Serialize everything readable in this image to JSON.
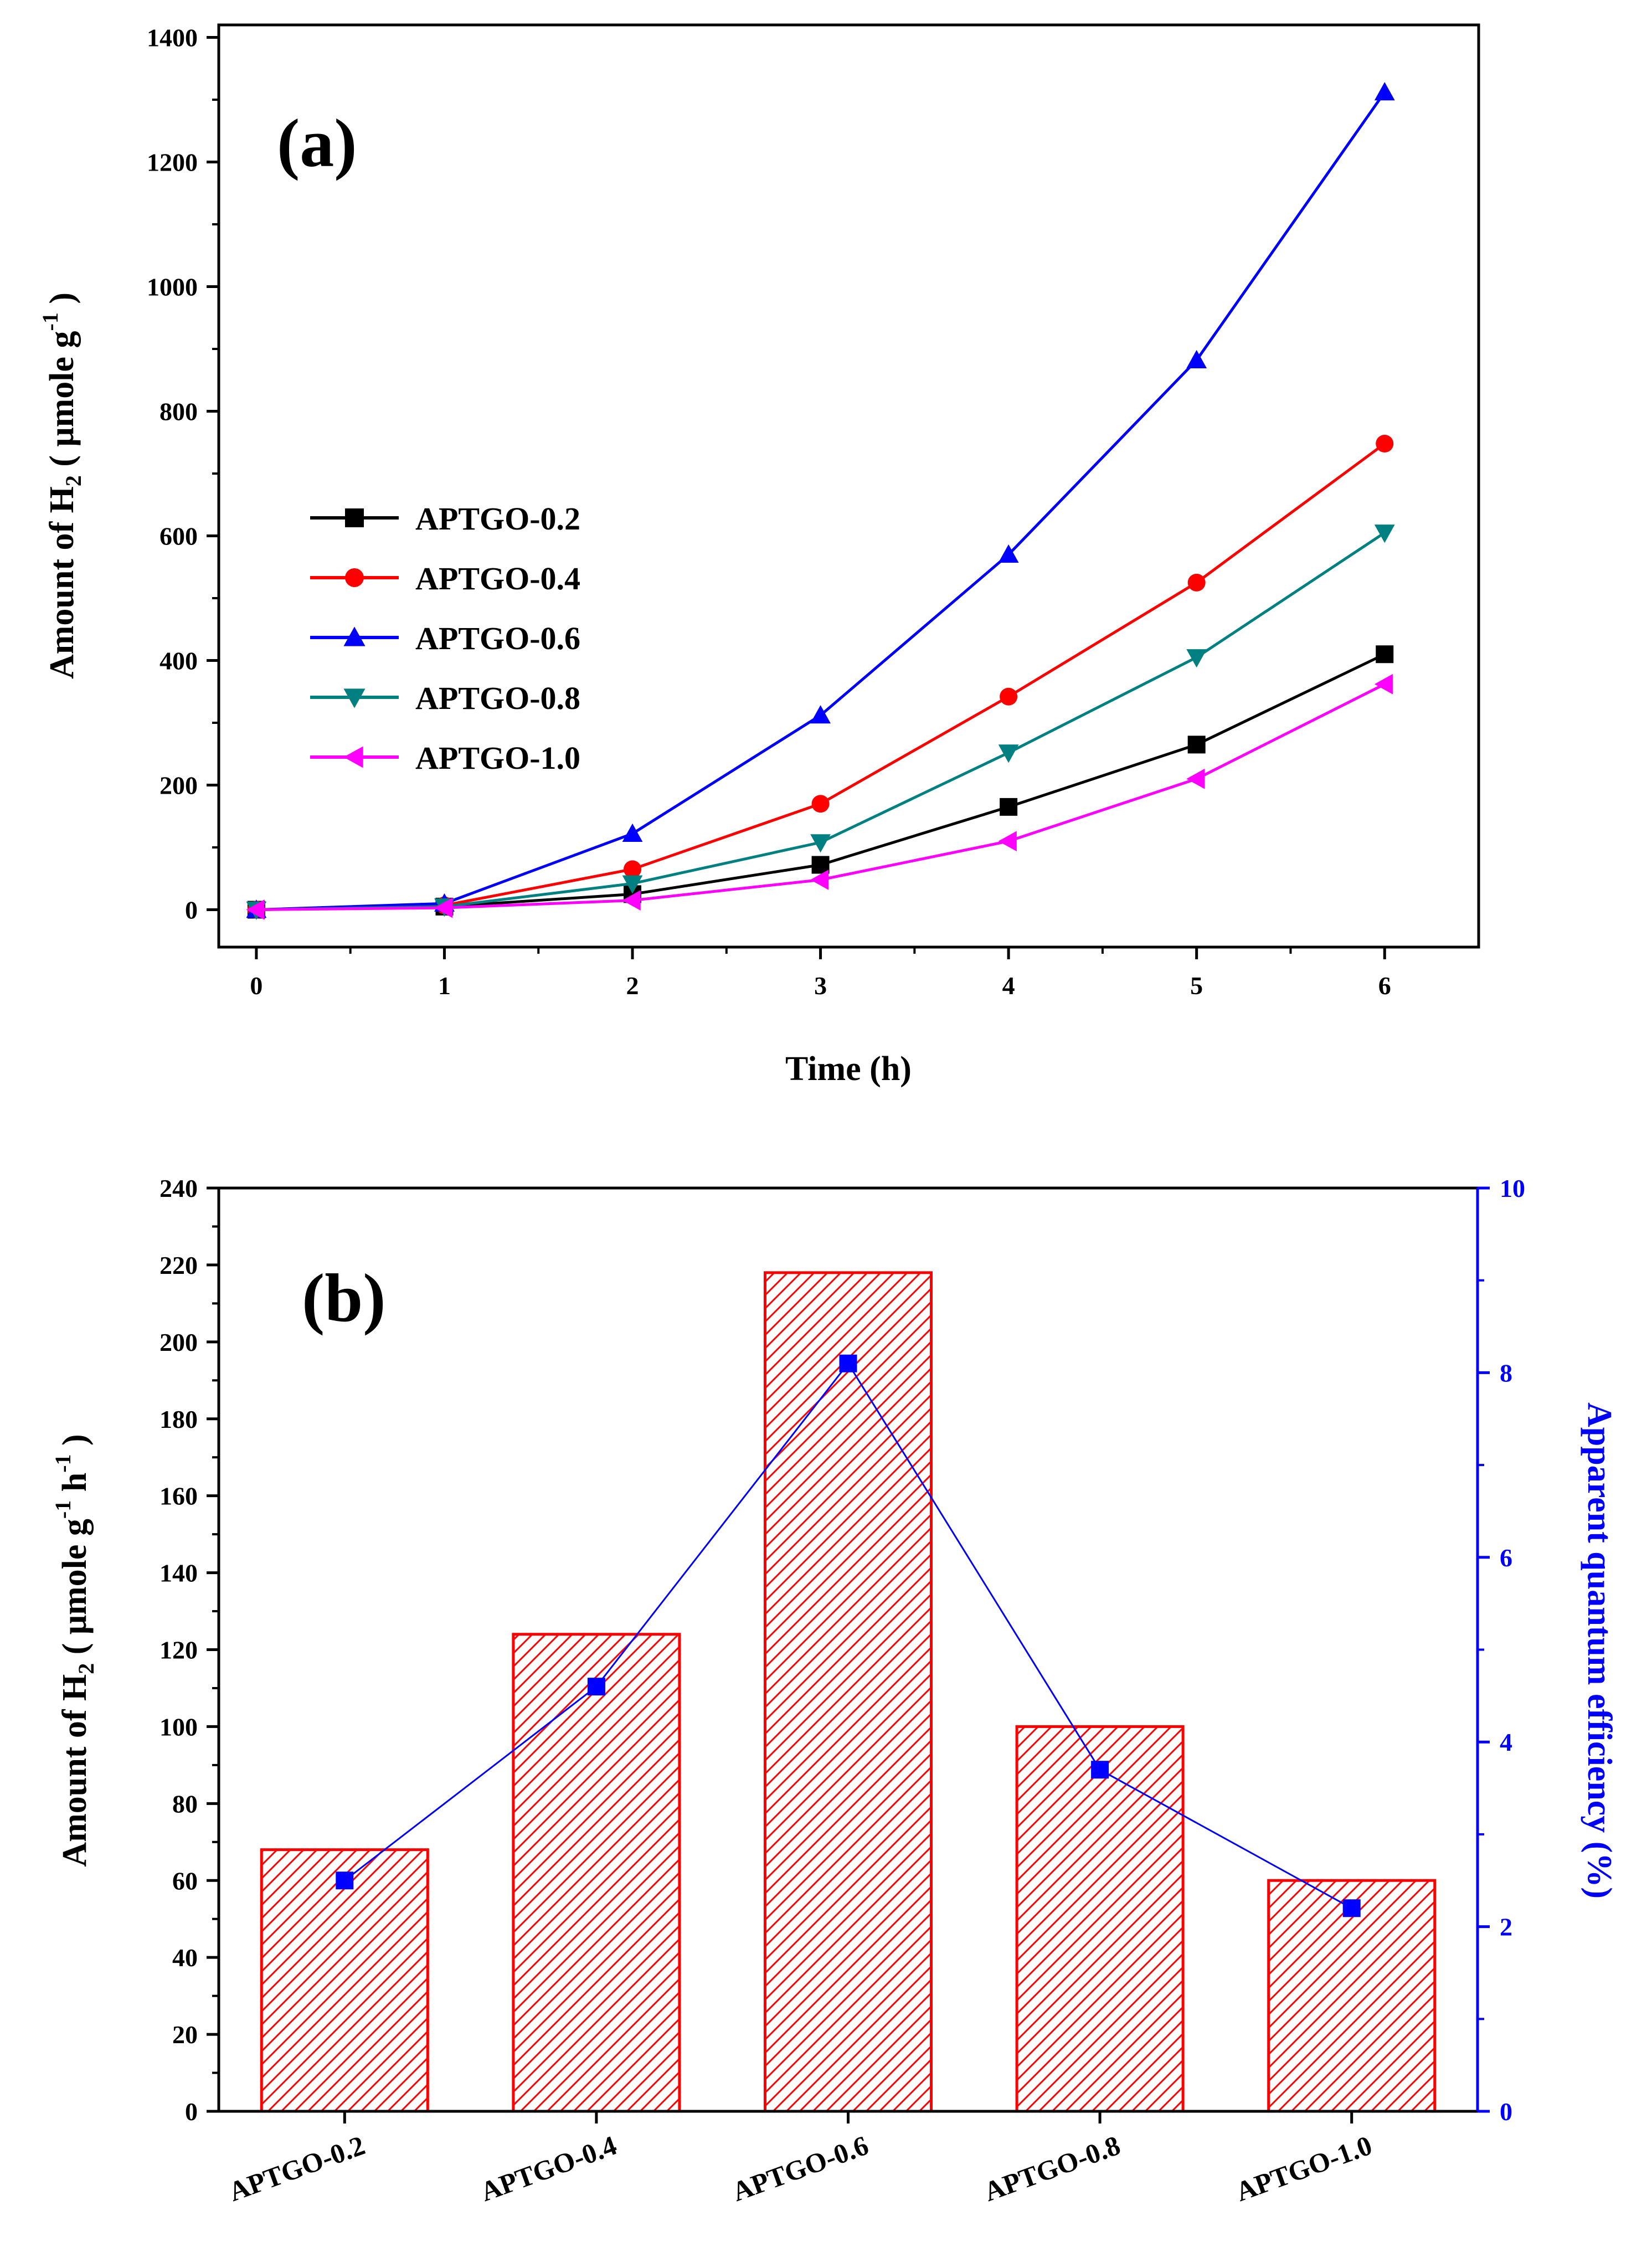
{
  "chart_data": [
    {
      "type": "line",
      "panel_label": "(a)",
      "xlabel": "Time (h)",
      "ylabel_prefix": "Amount of H",
      "ylabel_sub": "2",
      "ylabel_mid": " ( μmole g",
      "ylabel_sup": "-1",
      "ylabel_suffix": " )",
      "xlim": [
        -0.2,
        6.5
      ],
      "ylim": [
        -60,
        1420
      ],
      "x_ticks": [
        0,
        1,
        2,
        3,
        4,
        5,
        6
      ],
      "y_ticks": [
        0,
        200,
        400,
        600,
        800,
        1000,
        1200,
        1400
      ],
      "x": [
        0,
        1,
        2,
        3,
        4,
        5,
        6
      ],
      "series": [
        {
          "name": "APTGO-0.2",
          "color": "#000000",
          "marker": "square",
          "values": [
            0,
            5,
            25,
            72,
            165,
            265,
            410
          ]
        },
        {
          "name": "APTGO-0.4",
          "color": "#ff0000",
          "marker": "circle",
          "values": [
            0,
            7,
            65,
            170,
            342,
            525,
            748
          ]
        },
        {
          "name": "APTGO-0.6",
          "color": "#0000ff",
          "marker": "triangle-up",
          "values": [
            0,
            10,
            122,
            312,
            570,
            882,
            1312
          ]
        },
        {
          "name": "APTGO-0.8",
          "color": "#008080",
          "marker": "triangle-down",
          "values": [
            0,
            5,
            42,
            108,
            252,
            405,
            605
          ]
        },
        {
          "name": "APTGO-1.0",
          "color": "#ff00ff",
          "marker": "triangle-left",
          "values": [
            0,
            3,
            15,
            48,
            110,
            210,
            362
          ]
        }
      ]
    },
    {
      "type": "bar",
      "panel_label": "(b)",
      "categories": [
        "APTGO-0.2",
        "APTGO-0.4",
        "APTGO-0.6",
        "APTGO-0.8",
        "APTGO-1.0"
      ],
      "ylabel_prefix": "Amount of H",
      "ylabel_sub": "2",
      "ylabel_mid": " ( μmole g",
      "ylabel_sup1": "-1",
      "ylabel_mid2": " h",
      "ylabel_sup2": "-1",
      "ylabel_suffix": " )",
      "ylabel_right": "Apparent quantum efficiency (%)",
      "ylim": [
        0,
        240
      ],
      "ylim_right": [
        0,
        10
      ],
      "y_ticks": [
        0,
        20,
        40,
        60,
        80,
        100,
        120,
        140,
        160,
        180,
        200,
        220,
        240
      ],
      "y_ticks_right": [
        0,
        2,
        4,
        6,
        8,
        10
      ],
      "bar_color": "#ff0000",
      "line_color": "#0000ff",
      "series": [
        {
          "name": "Amount of H2",
          "axis": "left",
          "values": [
            68,
            124,
            218,
            100,
            60
          ]
        },
        {
          "name": "Apparent quantum efficiency",
          "axis": "right",
          "values": [
            2.5,
            4.6,
            8.1,
            3.7,
            2.2
          ]
        }
      ]
    }
  ]
}
